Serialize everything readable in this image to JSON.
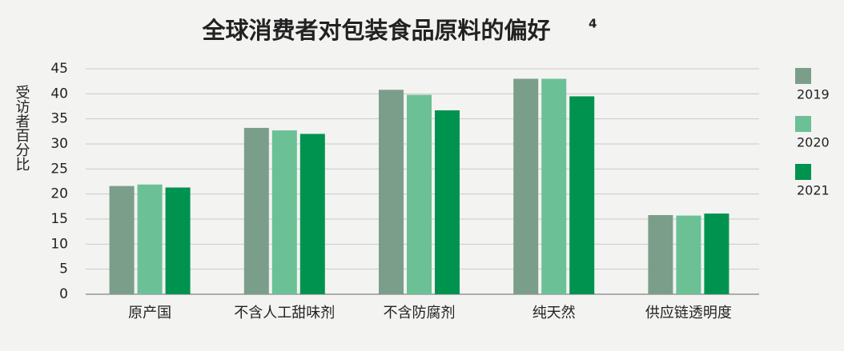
{
  "chart_data": {
    "type": "bar",
    "title": "全球消费者对包装食品原料的偏好",
    "title_superscript": "4",
    "y_label": "受访者百分比",
    "categories": [
      "原产国",
      "不含人工甜味剂",
      "不含防腐剂",
      "纯天然",
      "供应链透明度"
    ],
    "series": [
      {
        "name": "2019",
        "color": "#7a9e8a",
        "values": [
          21.6,
          33.2,
          40.8,
          43.0,
          15.8
        ]
      },
      {
        "name": "2020",
        "color": "#6cc095",
        "values": [
          21.9,
          32.7,
          39.8,
          43.0,
          15.7
        ]
      },
      {
        "name": "2021",
        "color": "#00934f",
        "values": [
          21.3,
          32.0,
          36.7,
          39.5,
          16.1
        ]
      }
    ],
    "ylim": [
      0,
      45
    ],
    "yticks": [
      0,
      5,
      10,
      15,
      20,
      25,
      30,
      35,
      40,
      45
    ],
    "grid": true,
    "legend": "right"
  }
}
